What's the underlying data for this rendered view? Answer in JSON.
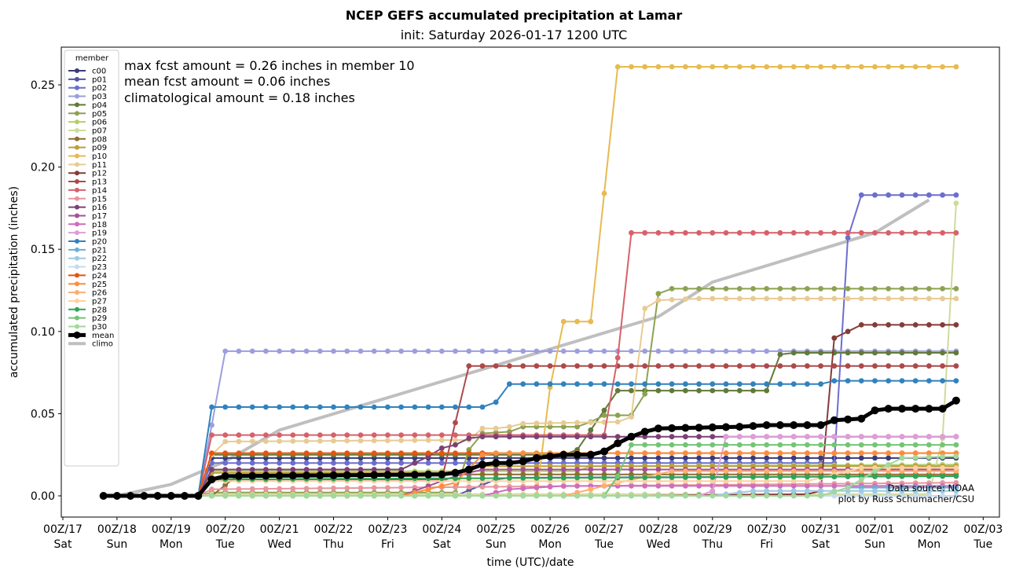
{
  "chart_data": {
    "type": "line",
    "title": "NCEP GEFS accumulated precipitation at Lamar",
    "subtitle": "init: Saturday 2026-01-17 1200 UTC",
    "xlabel": "time (UTC)/date",
    "ylabel": "accumulated precipitation (inches)",
    "ylim": [
      -0.013,
      0.274
    ],
    "xlim_days": [
      0,
      16.95
    ],
    "x_ticks": [
      {
        "top": "00Z/17",
        "bottom": "Sat"
      },
      {
        "top": "00Z/18",
        "bottom": "Sun"
      },
      {
        "top": "00Z/19",
        "bottom": "Mon"
      },
      {
        "top": "00Z/20",
        "bottom": "Tue"
      },
      {
        "top": "00Z/21",
        "bottom": "Wed"
      },
      {
        "top": "00Z/22",
        "bottom": "Thu"
      },
      {
        "top": "00Z/23",
        "bottom": "Fri"
      },
      {
        "top": "00Z/24",
        "bottom": "Sat"
      },
      {
        "top": "00Z/25",
        "bottom": "Sun"
      },
      {
        "top": "00Z/26",
        "bottom": "Mon"
      },
      {
        "top": "00Z/27",
        "bottom": "Tue"
      },
      {
        "top": "00Z/28",
        "bottom": "Wed"
      },
      {
        "top": "00Z/29",
        "bottom": "Thu"
      },
      {
        "top": "00Z/30",
        "bottom": "Fri"
      },
      {
        "top": "00Z/31",
        "bottom": "Sat"
      },
      {
        "top": "00Z/01",
        "bottom": "Sun"
      },
      {
        "top": "00Z/02",
        "bottom": "Mon"
      },
      {
        "top": "00Z/03",
        "bottom": "Tue"
      }
    ],
    "y_ticks": [
      "0.00",
      "0.05",
      "0.10",
      "0.15",
      "0.20",
      "0.25"
    ],
    "y_tick_values": [
      0,
      0.05,
      0.1,
      0.15,
      0.2,
      0.25
    ],
    "time_axis": {
      "start_days_after_00Z17": 0.75,
      "step_days": 0.25,
      "n_points": 64
    },
    "series_encoding": "breakpoints [index, value]; linear between, hold after last",
    "legend": {
      "title": "member",
      "placement": "upper-left"
    },
    "series": [
      {
        "name": "c00",
        "color": "#393b79",
        "bp": [
          [
            0,
            0
          ],
          [
            7,
            0
          ],
          [
            8,
            0.023
          ],
          [
            63,
            0.023
          ]
        ]
      },
      {
        "name": "p01",
        "color": "#5254a3",
        "bp": [
          [
            0,
            0
          ],
          [
            26,
            0
          ],
          [
            29,
            0.01
          ],
          [
            30,
            0.011
          ],
          [
            63,
            0.012
          ]
        ]
      },
      {
        "name": "p02",
        "color": "#6b6ecf",
        "bp": [
          [
            0,
            0
          ],
          [
            7,
            0
          ],
          [
            8,
            0.02
          ],
          [
            54,
            0.02
          ],
          [
            55,
            0.157
          ],
          [
            56,
            0.183
          ],
          [
            63,
            0.183
          ]
        ]
      },
      {
        "name": "p03",
        "color": "#9c9ede",
        "bp": [
          [
            0,
            0
          ],
          [
            7,
            0
          ],
          [
            8,
            0.043
          ],
          [
            9,
            0.088
          ],
          [
            63,
            0.088
          ]
        ]
      },
      {
        "name": "p04",
        "color": "#637939",
        "bp": [
          [
            0,
            0
          ],
          [
            7,
            0
          ],
          [
            8,
            0.025
          ],
          [
            34,
            0.025
          ],
          [
            35,
            0.028
          ],
          [
            38,
            0.064
          ],
          [
            49,
            0.064
          ],
          [
            50,
            0.086
          ],
          [
            51,
            0.087
          ],
          [
            63,
            0.087
          ]
        ]
      },
      {
        "name": "p05",
        "color": "#8ca252",
        "bp": [
          [
            0,
            0
          ],
          [
            7,
            0
          ],
          [
            8,
            0.002
          ],
          [
            26,
            0.002
          ],
          [
            27,
            0.028
          ],
          [
            28,
            0.038
          ],
          [
            30,
            0.039
          ],
          [
            31,
            0.042
          ],
          [
            35,
            0.042
          ],
          [
            36,
            0.045
          ],
          [
            37,
            0.049
          ],
          [
            39,
            0.049
          ],
          [
            40,
            0.062
          ],
          [
            41,
            0.123
          ],
          [
            42,
            0.126
          ],
          [
            63,
            0.126
          ]
        ]
      },
      {
        "name": "p06",
        "color": "#b5cf6b",
        "bp": [
          [
            0,
            0
          ],
          [
            7,
            0
          ],
          [
            8,
            0.015
          ],
          [
            35,
            0.015
          ],
          [
            36,
            0.018
          ],
          [
            63,
            0.019
          ]
        ]
      },
      {
        "name": "p07",
        "color": "#cedb9c",
        "bp": [
          [
            0,
            0
          ],
          [
            7,
            0
          ],
          [
            8,
            0.001
          ],
          [
            61,
            0.001
          ],
          [
            62,
            0.035
          ],
          [
            63,
            0.178
          ]
        ]
      },
      {
        "name": "p08",
        "color": "#8c6d31",
        "bp": [
          [
            0,
            0
          ],
          [
            8,
            0
          ],
          [
            10,
            0.013
          ],
          [
            63,
            0.013
          ]
        ]
      },
      {
        "name": "p09",
        "color": "#bd9e39",
        "bp": [
          [
            0,
            0
          ],
          [
            7,
            0
          ],
          [
            8,
            0.014
          ],
          [
            26,
            0.014
          ],
          [
            28,
            0.018
          ],
          [
            63,
            0.018
          ]
        ]
      },
      {
        "name": "p10",
        "color": "#e7ba52",
        "bp": [
          [
            0,
            0
          ],
          [
            32,
            0
          ],
          [
            33,
            0.066
          ],
          [
            34,
            0.106
          ],
          [
            36,
            0.106
          ],
          [
            37,
            0.184
          ],
          [
            38,
            0.261
          ],
          [
            63,
            0.261
          ]
        ]
      },
      {
        "name": "p11",
        "color": "#e7cb94",
        "bp": [
          [
            0,
            0
          ],
          [
            7,
            0
          ],
          [
            8,
            0.025
          ],
          [
            9,
            0.033
          ],
          [
            27,
            0.034
          ],
          [
            28,
            0.041
          ],
          [
            29,
            0.041
          ],
          [
            30,
            0.042
          ],
          [
            31,
            0.044
          ],
          [
            38,
            0.045
          ],
          [
            39,
            0.048
          ],
          [
            40,
            0.114
          ],
          [
            41,
            0.119
          ],
          [
            44,
            0.12
          ],
          [
            63,
            0.12
          ]
        ]
      },
      {
        "name": "p12",
        "color": "#843c39",
        "bp": [
          [
            0,
            0
          ],
          [
            40,
            0
          ],
          [
            52,
            0.001
          ],
          [
            53,
            0.003
          ],
          [
            54,
            0.096
          ],
          [
            55,
            0.1
          ],
          [
            56,
            0.104
          ],
          [
            63,
            0.104
          ]
        ]
      },
      {
        "name": "p13",
        "color": "#ad494a",
        "bp": [
          [
            0,
            0
          ],
          [
            7,
            0
          ],
          [
            8,
            0.01
          ],
          [
            25,
            0.01
          ],
          [
            27,
            0.079
          ],
          [
            63,
            0.079
          ]
        ]
      },
      {
        "name": "p14",
        "color": "#d6616b",
        "bp": [
          [
            0,
            0
          ],
          [
            7,
            0
          ],
          [
            8,
            0.037
          ],
          [
            37,
            0.037
          ],
          [
            38,
            0.084
          ],
          [
            39,
            0.16
          ],
          [
            63,
            0.16
          ]
        ]
      },
      {
        "name": "p15",
        "color": "#e7969c",
        "bp": [
          [
            0,
            0
          ],
          [
            7,
            0
          ],
          [
            8,
            0.004
          ],
          [
            63,
            0.008
          ]
        ]
      },
      {
        "name": "p16",
        "color": "#7b4173",
        "bp": [
          [
            0,
            0
          ],
          [
            7,
            0
          ],
          [
            8,
            0.016
          ],
          [
            22,
            0.016
          ],
          [
            23,
            0.02
          ],
          [
            24,
            0.024
          ],
          [
            25,
            0.029
          ],
          [
            26,
            0.031
          ],
          [
            27,
            0.035
          ],
          [
            28,
            0.036
          ],
          [
            63,
            0.036
          ]
        ]
      },
      {
        "name": "p17",
        "color": "#a55194",
        "bp": [
          [
            0,
            0
          ],
          [
            22,
            0
          ],
          [
            26,
            0.012
          ],
          [
            28,
            0.016
          ],
          [
            63,
            0.016
          ]
        ]
      },
      {
        "name": "p18",
        "color": "#ce6dbd",
        "bp": [
          [
            0,
            0
          ],
          [
            28,
            0
          ],
          [
            30,
            0.004
          ],
          [
            34,
            0.006
          ],
          [
            63,
            0.006
          ]
        ]
      },
      {
        "name": "p19",
        "color": "#de9ed6",
        "bp": [
          [
            0,
            0
          ],
          [
            44,
            0
          ],
          [
            45,
            0.003
          ],
          [
            46,
            0.036
          ],
          [
            63,
            0.036
          ]
        ]
      },
      {
        "name": "p20",
        "color": "#3182bd",
        "bp": [
          [
            0,
            0
          ],
          [
            7,
            0
          ],
          [
            8,
            0.054
          ],
          [
            28,
            0.054
          ],
          [
            29,
            0.057
          ],
          [
            30,
            0.068
          ],
          [
            53,
            0.068
          ],
          [
            54,
            0.07
          ],
          [
            63,
            0.07
          ]
        ]
      },
      {
        "name": "p21",
        "color": "#6baed6",
        "bp": [
          [
            0,
            0
          ],
          [
            53,
            0
          ],
          [
            55,
            0.005
          ],
          [
            63,
            0.005
          ]
        ]
      },
      {
        "name": "p22",
        "color": "#9ecae1",
        "bp": [
          [
            0,
            0
          ],
          [
            45,
            0
          ],
          [
            48,
            0.003
          ],
          [
            63,
            0.003
          ]
        ]
      },
      {
        "name": "p23",
        "color": "#c6dbef",
        "bp": [
          [
            0,
            0
          ],
          [
            63,
            0
          ]
        ]
      },
      {
        "name": "p24",
        "color": "#e6550d",
        "bp": [
          [
            0,
            0
          ],
          [
            7,
            0
          ],
          [
            8,
            0.026
          ],
          [
            63,
            0.026
          ]
        ]
      },
      {
        "name": "p25",
        "color": "#fd8d3c",
        "bp": [
          [
            0,
            0
          ],
          [
            22,
            0
          ],
          [
            26,
            0.008
          ],
          [
            28,
            0.025
          ],
          [
            29,
            0.026
          ],
          [
            63,
            0.026
          ]
        ]
      },
      {
        "name": "p26",
        "color": "#fdae6b",
        "bp": [
          [
            0,
            0
          ],
          [
            34,
            0
          ],
          [
            38,
            0.008
          ],
          [
            42,
            0.015
          ],
          [
            63,
            0.015
          ]
        ]
      },
      {
        "name": "p27",
        "color": "#fdd0a2",
        "bp": [
          [
            0,
            0
          ],
          [
            7,
            0
          ],
          [
            8,
            0.009
          ],
          [
            52,
            0.009
          ],
          [
            56,
            0.017
          ],
          [
            63,
            0.017
          ]
        ]
      },
      {
        "name": "p28",
        "color": "#31a354",
        "bp": [
          [
            0,
            0
          ],
          [
            7,
            0
          ],
          [
            8,
            0.01
          ],
          [
            63,
            0.012
          ]
        ]
      },
      {
        "name": "p29",
        "color": "#74c476",
        "bp": [
          [
            0,
            0
          ],
          [
            37,
            0
          ],
          [
            38,
            0.012
          ],
          [
            39,
            0.031
          ],
          [
            63,
            0.031
          ]
        ]
      },
      {
        "name": "p30",
        "color": "#a1d99b",
        "bp": [
          [
            0,
            0
          ],
          [
            53,
            0
          ],
          [
            55,
            0.005
          ],
          [
            57,
            0.015
          ],
          [
            59,
            0.023
          ],
          [
            63,
            0.024
          ]
        ]
      },
      {
        "name": "mean",
        "color": "#000000",
        "bp": [
          [
            0,
            0
          ],
          [
            7,
            0
          ],
          [
            8,
            0.01
          ],
          [
            9,
            0.012
          ],
          [
            25,
            0.013
          ],
          [
            26,
            0.014
          ],
          [
            27,
            0.016
          ],
          [
            28,
            0.019
          ],
          [
            29,
            0.02
          ],
          [
            30,
            0.02
          ],
          [
            31,
            0.021
          ],
          [
            32,
            0.023
          ],
          [
            33,
            0.024
          ],
          [
            34,
            0.025
          ],
          [
            36,
            0.025
          ],
          [
            37,
            0.027
          ],
          [
            38,
            0.032
          ],
          [
            39,
            0.036
          ],
          [
            40,
            0.039
          ],
          [
            41,
            0.041
          ],
          [
            47,
            0.042
          ],
          [
            49,
            0.043
          ],
          [
            53,
            0.043
          ],
          [
            54,
            0.046
          ],
          [
            56,
            0.047
          ],
          [
            57,
            0.052
          ],
          [
            58,
            0.053
          ],
          [
            62,
            0.053
          ],
          [
            63,
            0.058
          ]
        ]
      },
      {
        "name": "climo",
        "color": "#bfbfbf",
        "points_days": [
          [
            1,
            0.0
          ],
          [
            2,
            0.007
          ],
          [
            3,
            0.021
          ],
          [
            4,
            0.04
          ],
          [
            11,
            0.109
          ],
          [
            12,
            0.13
          ],
          [
            15,
            0.16
          ],
          [
            16,
            0.18
          ]
        ]
      }
    ],
    "annotations": [
      "max fcst amount = 0.26 inches in member 10",
      "mean fcst amount = 0.06 inches",
      "climatological amount = 0.18 inches"
    ],
    "credits": [
      "Data source: NOAA",
      "plot by Russ Schumacher/CSU"
    ]
  }
}
